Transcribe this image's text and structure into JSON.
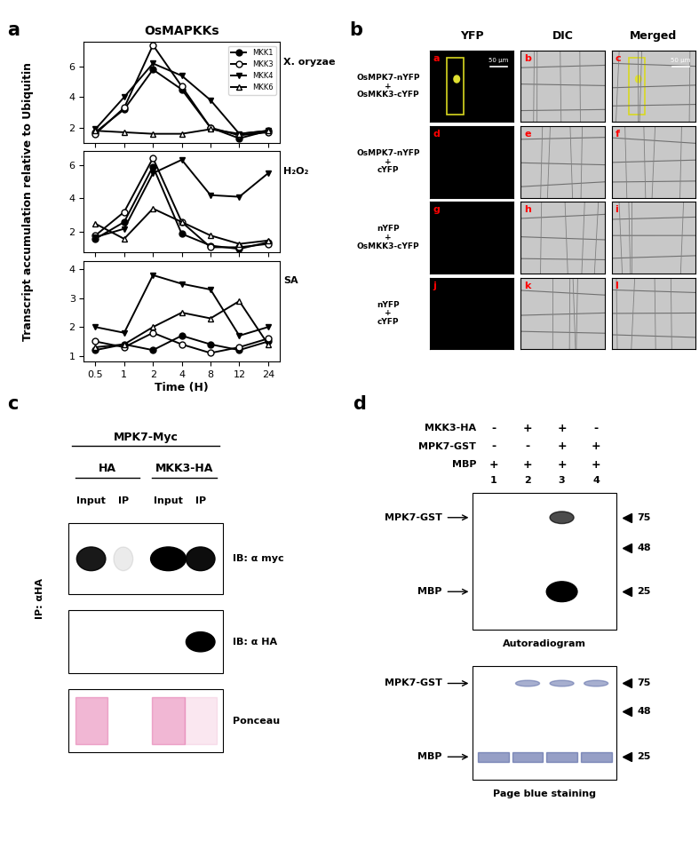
{
  "panel_labels": [
    "a",
    "b",
    "c",
    "d"
  ],
  "y_label": "Transcript accumulation relative to Ubiquitin",
  "chart_data": [
    {
      "type": "line",
      "title": "OsMAPKKs",
      "annotation": "X. oryzae",
      "categories": [
        "0.5",
        "1",
        "2",
        "4",
        "8",
        "12",
        "24"
      ],
      "ylim": [
        1,
        7.6
      ],
      "yticks": [
        2,
        4,
        6
      ],
      "tick_labels": "y",
      "legend": "upper right",
      "series": [
        {
          "name": "MKK1",
          "color": "#000000",
          "marker": "filled_circle",
          "values": [
            1.7,
            3.2,
            5.8,
            4.5,
            2.0,
            1.3,
            1.8
          ]
        },
        {
          "name": "MKK3",
          "color": "#000000",
          "marker": "open_circle",
          "values": [
            1.6,
            3.3,
            7.4,
            4.7,
            2.0,
            1.5,
            1.7
          ]
        },
        {
          "name": "MKK4",
          "color": "#000000",
          "marker": "filled_triangle_down",
          "values": [
            1.9,
            4.0,
            6.2,
            5.4,
            3.8,
            1.6,
            1.8
          ]
        },
        {
          "name": "MKK6",
          "color": "#000000",
          "marker": "open_triangle_up",
          "values": [
            1.8,
            1.7,
            1.6,
            1.6,
            1.9,
            1.6,
            1.8
          ]
        }
      ]
    },
    {
      "type": "line",
      "annotation": "H₂O₂",
      "categories": [
        "0.5",
        "1",
        "2",
        "4",
        "8",
        "12",
        "24"
      ],
      "ylim": [
        0.8,
        6.8
      ],
      "yticks": [
        2,
        4,
        6
      ],
      "tick_labels": "y",
      "series": [
        {
          "name": "MKK1",
          "color": "#000000",
          "marker": "filled_circle",
          "values": [
            1.6,
            2.6,
            5.9,
            1.9,
            1.2,
            1.0,
            1.4
          ]
        },
        {
          "name": "MKK3",
          "color": "#000000",
          "marker": "open_circle",
          "values": [
            1.8,
            3.2,
            6.4,
            2.6,
            1.1,
            1.1,
            1.3
          ]
        },
        {
          "name": "MKK4",
          "color": "#000000",
          "marker": "filled_triangle_down",
          "values": [
            1.7,
            2.2,
            5.5,
            6.3,
            4.2,
            4.1,
            5.5
          ]
        },
        {
          "name": "MKK6",
          "color": "#000000",
          "marker": "open_triangle_up",
          "values": [
            2.5,
            1.6,
            3.4,
            2.6,
            1.8,
            1.3,
            1.5
          ]
        }
      ]
    },
    {
      "type": "line",
      "annotation": "SA",
      "x_label": "Time (H)",
      "categories": [
        "0.5",
        "1",
        "2",
        "4",
        "8",
        "12",
        "24"
      ],
      "ylim": [
        0.8,
        4.3
      ],
      "yticks": [
        1,
        2,
        3,
        4
      ],
      "series": [
        {
          "name": "MKK1",
          "color": "#000000",
          "marker": "filled_circle",
          "values": [
            1.2,
            1.4,
            1.2,
            1.7,
            1.4,
            1.2,
            1.5
          ]
        },
        {
          "name": "MKK3",
          "color": "#000000",
          "marker": "open_circle",
          "values": [
            1.5,
            1.3,
            1.8,
            1.4,
            1.1,
            1.3,
            1.6
          ]
        },
        {
          "name": "MKK4",
          "color": "#000000",
          "marker": "filled_triangle_down",
          "values": [
            2.0,
            1.8,
            3.8,
            3.5,
            3.3,
            1.7,
            2.0
          ]
        },
        {
          "name": "MKK6",
          "color": "#000000",
          "marker": "open_triangle_up",
          "values": [
            1.3,
            1.4,
            2.0,
            2.5,
            2.3,
            2.9,
            1.4
          ]
        }
      ]
    }
  ],
  "panel_b": {
    "column_headers": [
      "YFP",
      "DIC",
      "Merged"
    ],
    "rows": [
      {
        "label": "OsMPK7-nYFP\n+\nOsMKK3-cYFP",
        "panels": [
          "a",
          "b",
          "c"
        ]
      },
      {
        "label": "OsMPK7-nYFP\n+\ncYFP",
        "panels": [
          "d",
          "e",
          "f"
        ]
      },
      {
        "label": "nYFP\n+\nOsMKK3-cYFP",
        "panels": [
          "g",
          "h",
          "i"
        ]
      },
      {
        "label": "nYFP\n+\ncYFP",
        "panels": [
          "j",
          "k",
          "l"
        ]
      }
    ],
    "scale_bar": {
      "text": "50 µm",
      "panels": [
        "a",
        "c"
      ]
    }
  },
  "panel_c": {
    "header": "MPK7-Myc",
    "groups": [
      "HA",
      "MKK3-HA"
    ],
    "lanes": [
      "Input",
      "IP",
      "Input",
      "IP"
    ],
    "side_label": "IP: αHA",
    "blots": [
      "IB: α myc",
      "IB: α HA",
      "Ponceau"
    ]
  },
  "panel_d": {
    "rows": [
      {
        "label": "MKK3-HA",
        "signs": [
          "-",
          "+",
          "+",
          "-"
        ]
      },
      {
        "label": "MPK7-GST",
        "signs": [
          "-",
          "-",
          "+",
          "+"
        ]
      },
      {
        "label": "MBP",
        "signs": [
          "+",
          "+",
          "+",
          "+"
        ]
      }
    ],
    "lanes": [
      1,
      2,
      3,
      4
    ],
    "band_labels": [
      "MPK7-GST",
      "MBP"
    ],
    "markers": [
      75,
      48,
      25
    ],
    "blots": [
      "Autoradiogram",
      "Page blue staining"
    ]
  }
}
